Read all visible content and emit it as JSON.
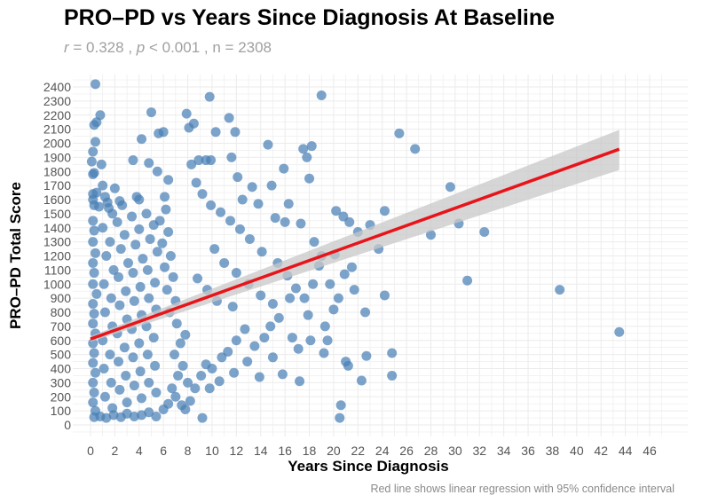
{
  "chart_data": {
    "type": "scatter",
    "title": "PRO–PD vs Years Since Diagnosis At Baseline",
    "subtitle": {
      "r_label": "r",
      "r_value": "0.328",
      "p_label": "p",
      "p_value": "< 0.001",
      "n_label": "n",
      "n_value": "2308"
    },
    "xlabel": "Years Since Diagnosis",
    "ylabel": "PRO–PD Total Score",
    "caption": "Red line shows linear regression with 95% confidence interval",
    "xlim": [
      -1.5,
      49
    ],
    "ylim": [
      -80,
      2470
    ],
    "x_ticks": [
      0,
      2,
      4,
      6,
      8,
      10,
      12,
      14,
      16,
      18,
      20,
      22,
      24,
      26,
      28,
      30,
      32,
      34,
      36,
      38,
      40,
      42,
      44,
      46
    ],
    "y_ticks": [
      0,
      100,
      200,
      300,
      400,
      500,
      600,
      700,
      800,
      900,
      1000,
      1100,
      1200,
      1300,
      1400,
      1500,
      1600,
      1700,
      1800,
      1900,
      2000,
      2100,
      2200,
      2300,
      2400
    ],
    "grid": true,
    "colors": {
      "points": "#4a7fb5",
      "regression": "#e8141a",
      "ci_band": "#c8c8c8",
      "grid": "#ebebeb"
    },
    "regression": {
      "x_start": 0,
      "x_end": 43.5,
      "y_start": 610,
      "y_end": 1958,
      "ci_start": [
        590,
        630
      ],
      "ci_end": [
        1810,
        2095
      ]
    },
    "points": [
      [
        0.4,
        2420
      ],
      [
        0.8,
        2200
      ],
      [
        0.5,
        2150
      ],
      [
        0.3,
        2130
      ],
      [
        0.4,
        2010
      ],
      [
        0.2,
        1940
      ],
      [
        0.1,
        1870
      ],
      [
        0.3,
        1790
      ],
      [
        0.2,
        1780
      ],
      [
        0.9,
        1850
      ],
      [
        0.2,
        1640
      ],
      [
        0.5,
        1650
      ],
      [
        1.0,
        1700
      ],
      [
        0.2,
        1600
      ],
      [
        0.3,
        1560
      ],
      [
        1.2,
        1620
      ],
      [
        1.5,
        1540
      ],
      [
        2.0,
        1680
      ],
      [
        2.4,
        1590
      ],
      [
        1.8,
        1500
      ],
      [
        3.5,
        1880
      ],
      [
        4.2,
        2030
      ],
      [
        5.0,
        2220
      ],
      [
        4.8,
        1860
      ],
      [
        5.6,
        2070
      ],
      [
        6.0,
        2080
      ],
      [
        5.5,
        1800
      ],
      [
        6.4,
        1740
      ],
      [
        6.1,
        1620
      ],
      [
        4.0,
        1600
      ],
      [
        7.9,
        2210
      ],
      [
        8.1,
        2110
      ],
      [
        8.5,
        2140
      ],
      [
        8.3,
        1850
      ],
      [
        8.9,
        1880
      ],
      [
        9.8,
        2330
      ],
      [
        9.5,
        1880
      ],
      [
        9.9,
        1880
      ],
      [
        10.3,
        2080
      ],
      [
        11.4,
        2180
      ],
      [
        11.9,
        2080
      ],
      [
        11.6,
        1900
      ],
      [
        12.1,
        1760
      ],
      [
        13.3,
        1690
      ],
      [
        14.6,
        1990
      ],
      [
        14.9,
        1700
      ],
      [
        15.9,
        1820
      ],
      [
        16.3,
        1570
      ],
      [
        17.5,
        1960
      ],
      [
        18.2,
        1980
      ],
      [
        19.0,
        2340
      ],
      [
        17.8,
        1900
      ],
      [
        18.0,
        1750
      ],
      [
        12.5,
        1600
      ],
      [
        13.8,
        1570
      ],
      [
        15.2,
        1470
      ],
      [
        16.0,
        1440
      ],
      [
        17.3,
        1430
      ],
      [
        18.4,
        1300
      ],
      [
        19.0,
        1200
      ],
      [
        20.2,
        1520
      ],
      [
        20.8,
        1480
      ],
      [
        21.3,
        1440
      ],
      [
        22.0,
        1370
      ],
      [
        23.0,
        1420
      ],
      [
        23.7,
        1250
      ],
      [
        24.2,
        1520
      ],
      [
        25.4,
        2070
      ],
      [
        26.7,
        1960
      ],
      [
        28.0,
        1350
      ],
      [
        29.6,
        1690
      ],
      [
        30.3,
        1430
      ],
      [
        32.4,
        1370
      ],
      [
        31.0,
        1025
      ],
      [
        38.6,
        960
      ],
      [
        43.5,
        660
      ],
      [
        24.2,
        920
      ],
      [
        22.6,
        800
      ],
      [
        22.7,
        490
      ],
      [
        22.3,
        315
      ],
      [
        24.8,
        510
      ],
      [
        24.8,
        350
      ],
      [
        20.6,
        140
      ],
      [
        20.5,
        50
      ],
      [
        21.0,
        450
      ],
      [
        21.2,
        420
      ],
      [
        19.2,
        510
      ],
      [
        17.2,
        310
      ],
      [
        20.1,
        1210
      ],
      [
        20.9,
        1070
      ],
      [
        21.5,
        1120
      ],
      [
        19.7,
        1000
      ],
      [
        18.8,
        1130
      ],
      [
        18.3,
        1000
      ],
      [
        17.6,
        900
      ],
      [
        17.9,
        780
      ],
      [
        16.9,
        970
      ],
      [
        16.4,
        900
      ],
      [
        15.5,
        760
      ],
      [
        14.8,
        700
      ],
      [
        14.3,
        620
      ],
      [
        13.5,
        560
      ],
      [
        12.7,
        680
      ],
      [
        12.0,
        600
      ],
      [
        11.3,
        520
      ],
      [
        10.8,
        480
      ],
      [
        10.0,
        400
      ],
      [
        9.5,
        430
      ],
      [
        9.1,
        350
      ],
      [
        8.6,
        260
      ],
      [
        8.2,
        170
      ],
      [
        7.8,
        110
      ],
      [
        7.5,
        140
      ],
      [
        9.2,
        50
      ],
      [
        8.0,
        300
      ],
      [
        9.8,
        260
      ],
      [
        10.6,
        310
      ],
      [
        11.8,
        370
      ],
      [
        12.9,
        450
      ],
      [
        13.9,
        340
      ],
      [
        15.0,
        480
      ],
      [
        15.8,
        360
      ],
      [
        16.6,
        620
      ],
      [
        17.1,
        540
      ],
      [
        18.1,
        600
      ],
      [
        19.3,
        700
      ],
      [
        19.5,
        600
      ],
      [
        20.0,
        820
      ],
      [
        21.7,
        960
      ],
      [
        20.4,
        900
      ],
      [
        16.2,
        1060
      ],
      [
        15.4,
        1150
      ],
      [
        14.1,
        1230
      ],
      [
        13.1,
        1320
      ],
      [
        12.3,
        1390
      ],
      [
        11.5,
        1450
      ],
      [
        10.7,
        1510
      ],
      [
        9.9,
        1560
      ],
      [
        9.2,
        1640
      ],
      [
        8.7,
        1720
      ],
      [
        10.2,
        1250
      ],
      [
        11.0,
        1150
      ],
      [
        12.0,
        1080
      ],
      [
        13.0,
        1000
      ],
      [
        14.0,
        920
      ],
      [
        15.0,
        860
      ],
      [
        11.7,
        840
      ],
      [
        10.4,
        880
      ],
      [
        9.6,
        960
      ],
      [
        8.8,
        1040
      ],
      [
        0.2,
        1450
      ],
      [
        0.3,
        1380
      ],
      [
        0.2,
        1300
      ],
      [
        0.4,
        1220
      ],
      [
        0.2,
        1150
      ],
      [
        0.3,
        1080
      ],
      [
        0.2,
        1000
      ],
      [
        0.5,
        930
      ],
      [
        0.2,
        860
      ],
      [
        0.3,
        790
      ],
      [
        0.2,
        720
      ],
      [
        0.4,
        650
      ],
      [
        0.2,
        580
      ],
      [
        0.3,
        510
      ],
      [
        0.2,
        440
      ],
      [
        0.4,
        370
      ],
      [
        0.2,
        300
      ],
      [
        0.3,
        230
      ],
      [
        0.2,
        160
      ],
      [
        0.4,
        100
      ],
      [
        0.3,
        55
      ],
      [
        0.8,
        60
      ],
      [
        1.3,
        50
      ],
      [
        1.9,
        70
      ],
      [
        2.5,
        55
      ],
      [
        3.0,
        80
      ],
      [
        3.6,
        60
      ],
      [
        4.2,
        70
      ],
      [
        4.8,
        90
      ],
      [
        5.4,
        60
      ],
      [
        6.0,
        110
      ],
      [
        6.4,
        150
      ],
      [
        7.0,
        200
      ],
      [
        6.7,
        260
      ],
      [
        7.2,
        350
      ],
      [
        7.6,
        420
      ],
      [
        6.9,
        500
      ],
      [
        7.4,
        580
      ],
      [
        7.8,
        640
      ],
      [
        7.1,
        720
      ],
      [
        6.5,
        800
      ],
      [
        7.0,
        880
      ],
      [
        6.3,
        960
      ],
      [
        6.8,
        1050
      ],
      [
        6.1,
        1120
      ],
      [
        6.6,
        1200
      ],
      [
        5.9,
        1290
      ],
      [
        6.4,
        1370
      ],
      [
        5.7,
        1450
      ],
      [
        6.2,
        1530
      ],
      [
        1.0,
        1400
      ],
      [
        1.6,
        1300
      ],
      [
        2.2,
        1440
      ],
      [
        2.8,
        1350
      ],
      [
        3.4,
        1480
      ],
      [
        4.0,
        1390
      ],
      [
        4.6,
        1500
      ],
      [
        5.2,
        1420
      ],
      [
        1.3,
        1200
      ],
      [
        1.9,
        1100
      ],
      [
        2.5,
        1250
      ],
      [
        3.1,
        1150
      ],
      [
        3.7,
        1280
      ],
      [
        4.3,
        1180
      ],
      [
        4.9,
        1320
      ],
      [
        5.5,
        1230
      ],
      [
        1.1,
        1000
      ],
      [
        1.7,
        900
      ],
      [
        2.3,
        1050
      ],
      [
        2.9,
        950
      ],
      [
        3.5,
        1080
      ],
      [
        4.1,
        980
      ],
      [
        4.7,
        1100
      ],
      [
        5.3,
        1010
      ],
      [
        1.2,
        800
      ],
      [
        1.8,
        700
      ],
      [
        2.4,
        850
      ],
      [
        3.0,
        750
      ],
      [
        3.6,
        880
      ],
      [
        4.2,
        780
      ],
      [
        4.8,
        900
      ],
      [
        5.4,
        820
      ],
      [
        1.0,
        600
      ],
      [
        1.6,
        500
      ],
      [
        2.2,
        650
      ],
      [
        2.8,
        550
      ],
      [
        3.4,
        680
      ],
      [
        4.0,
        580
      ],
      [
        4.6,
        700
      ],
      [
        5.2,
        620
      ],
      [
        1.1,
        400
      ],
      [
        1.7,
        300
      ],
      [
        2.3,
        450
      ],
      [
        2.9,
        350
      ],
      [
        3.5,
        480
      ],
      [
        4.1,
        380
      ],
      [
        4.7,
        500
      ],
      [
        5.3,
        420
      ],
      [
        1.2,
        200
      ],
      [
        1.8,
        120
      ],
      [
        2.4,
        250
      ],
      [
        3.0,
        160
      ],
      [
        3.6,
        280
      ],
      [
        4.2,
        190
      ],
      [
        4.8,
        300
      ],
      [
        5.4,
        230
      ],
      [
        0.7,
        1550
      ],
      [
        1.4,
        1580
      ],
      [
        2.6,
        1560
      ],
      [
        3.8,
        1620
      ]
    ]
  }
}
